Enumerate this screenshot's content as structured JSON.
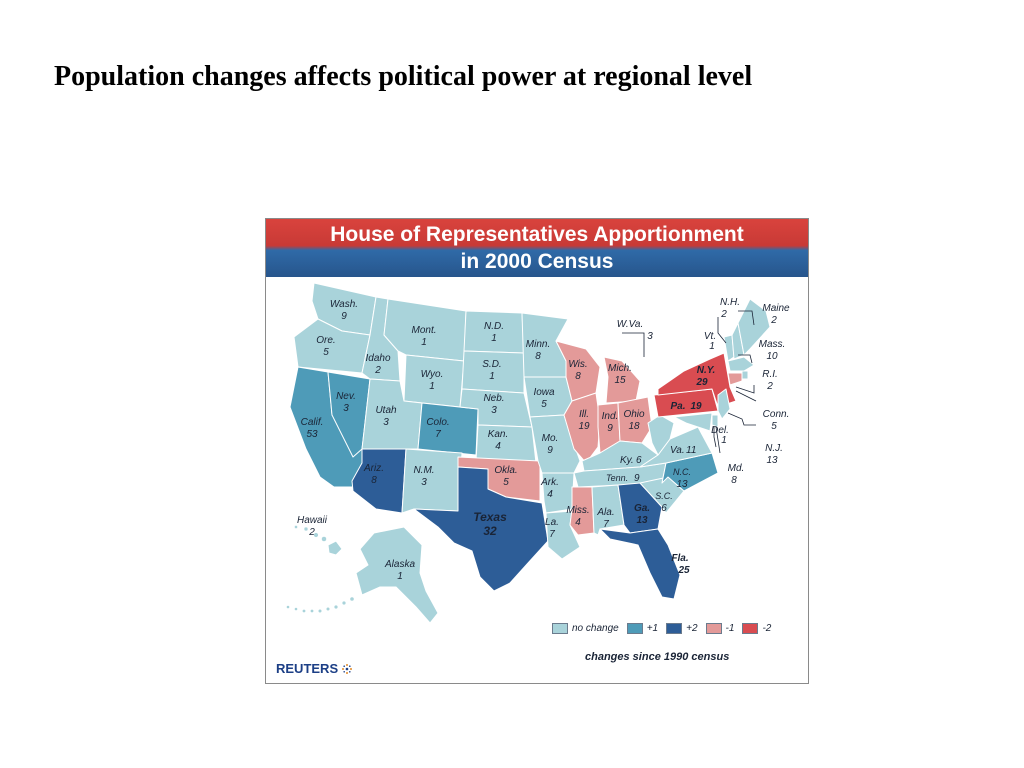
{
  "slide": {
    "title": "Population changes affects political power at regional level"
  },
  "map": {
    "header_line1": "House of Representatives Apportionment",
    "header_line2": "in 2000 Census",
    "credit": "REUTERS",
    "legend": {
      "items": [
        {
          "label": "no change",
          "color": "#a9d3da"
        },
        {
          "label": "+1",
          "color": "#4e9bb8"
        },
        {
          "label": "+2",
          "color": "#2d5d97"
        },
        {
          "label": "-1",
          "color": "#e39a99"
        },
        {
          "label": "-2",
          "color": "#d94c51"
        }
      ],
      "caption": "changes since 1990 census"
    },
    "states": [
      {
        "abbr": "Wash.",
        "seats": "9",
        "change": "no change"
      },
      {
        "abbr": "Ore.",
        "seats": "5",
        "change": "no change"
      },
      {
        "abbr": "Calif.",
        "seats": "53",
        "change": "+1"
      },
      {
        "abbr": "Nev.",
        "seats": "3",
        "change": "+1"
      },
      {
        "abbr": "Idaho",
        "seats": "2",
        "change": "no change"
      },
      {
        "abbr": "Mont.",
        "seats": "1",
        "change": "no change"
      },
      {
        "abbr": "Wyo.",
        "seats": "1",
        "change": "no change"
      },
      {
        "abbr": "Utah",
        "seats": "3",
        "change": "no change"
      },
      {
        "abbr": "Colo.",
        "seats": "7",
        "change": "+1"
      },
      {
        "abbr": "Ariz.",
        "seats": "8",
        "change": "+2"
      },
      {
        "abbr": "N.M.",
        "seats": "3",
        "change": "no change"
      },
      {
        "abbr": "N.D.",
        "seats": "1",
        "change": "no change"
      },
      {
        "abbr": "S.D.",
        "seats": "1",
        "change": "no change"
      },
      {
        "abbr": "Neb.",
        "seats": "3",
        "change": "no change"
      },
      {
        "abbr": "Kan.",
        "seats": "4",
        "change": "no change"
      },
      {
        "abbr": "Okla.",
        "seats": "5",
        "change": "-1"
      },
      {
        "abbr": "Texas",
        "seats": "32",
        "change": "+2"
      },
      {
        "abbr": "Minn.",
        "seats": "8",
        "change": "no change"
      },
      {
        "abbr": "Iowa",
        "seats": "5",
        "change": "no change"
      },
      {
        "abbr": "Mo.",
        "seats": "9",
        "change": "no change"
      },
      {
        "abbr": "Ark.",
        "seats": "4",
        "change": "no change"
      },
      {
        "abbr": "La.",
        "seats": "7",
        "change": "no change"
      },
      {
        "abbr": "Wis.",
        "seats": "8",
        "change": "-1"
      },
      {
        "abbr": "Ill.",
        "seats": "19",
        "change": "-1"
      },
      {
        "abbr": "Mich.",
        "seats": "15",
        "change": "-1"
      },
      {
        "abbr": "Ind.",
        "seats": "9",
        "change": "-1"
      },
      {
        "abbr": "Ohio",
        "seats": "18",
        "change": "-1"
      },
      {
        "abbr": "Ky.",
        "seats": "6",
        "change": "no change"
      },
      {
        "abbr": "Tenn.",
        "seats": "9",
        "change": "no change"
      },
      {
        "abbr": "Miss.",
        "seats": "4",
        "change": "-1"
      },
      {
        "abbr": "Ala.",
        "seats": "7",
        "change": "no change"
      },
      {
        "abbr": "Ga.",
        "seats": "13",
        "change": "+2"
      },
      {
        "abbr": "Fla.",
        "seats": "25",
        "change": "+2"
      },
      {
        "abbr": "S.C.",
        "seats": "6",
        "change": "no change"
      },
      {
        "abbr": "N.C.",
        "seats": "13",
        "change": "+1"
      },
      {
        "abbr": "Va.",
        "seats": "11",
        "change": "no change"
      },
      {
        "abbr": "W.Va.",
        "seats": "3",
        "change": "no change"
      },
      {
        "abbr": "Pa.",
        "seats": "19",
        "change": "-2"
      },
      {
        "abbr": "N.Y.",
        "seats": "29",
        "change": "-2"
      },
      {
        "abbr": "Vt.",
        "seats": "1",
        "change": "no change"
      },
      {
        "abbr": "N.H.",
        "seats": "2",
        "change": "no change"
      },
      {
        "abbr": "Maine",
        "seats": "2",
        "change": "no change"
      },
      {
        "abbr": "Mass.",
        "seats": "10",
        "change": "no change"
      },
      {
        "abbr": "R.I.",
        "seats": "2",
        "change": "no change"
      },
      {
        "abbr": "Conn.",
        "seats": "5",
        "change": "-1"
      },
      {
        "abbr": "N.J.",
        "seats": "13",
        "change": "no change"
      },
      {
        "abbr": "Del.",
        "seats": "1",
        "change": "no change"
      },
      {
        "abbr": "Md.",
        "seats": "8",
        "change": "no change"
      },
      {
        "abbr": "Hawaii",
        "seats": "2",
        "change": "no change"
      },
      {
        "abbr": "Alaska",
        "seats": "1",
        "change": "no change"
      }
    ]
  }
}
